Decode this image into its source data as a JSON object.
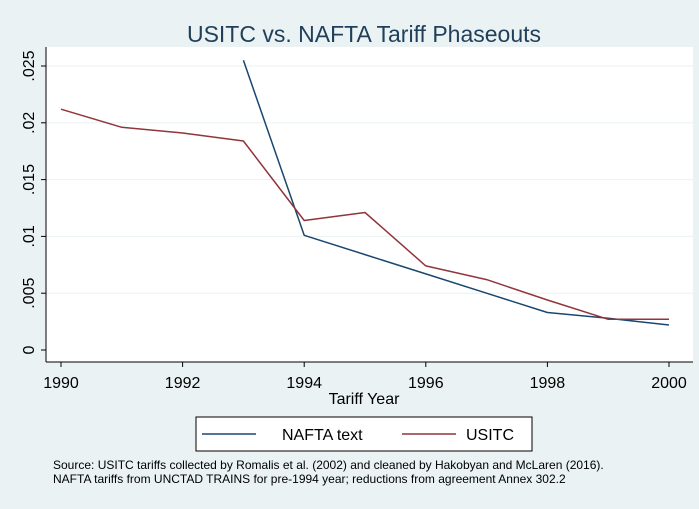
{
  "chart_data": {
    "type": "line",
    "title": "USITC vs. NAFTA Tariff Phaseouts",
    "xlabel": "Tariff Year",
    "ylabel": "",
    "xlim": [
      1990,
      2000
    ],
    "ylim": [
      0,
      0.025
    ],
    "x_ticks": [
      1990,
      1992,
      1994,
      1996,
      1998,
      2000
    ],
    "x_tick_labels": [
      "1990",
      "1992",
      "1994",
      "1996",
      "1998",
      "2000"
    ],
    "y_ticks": [
      0,
      0.005,
      0.01,
      0.015,
      0.02,
      0.025
    ],
    "y_tick_labels": [
      "0",
      ".005",
      ".01",
      ".015",
      ".02",
      ".025"
    ],
    "grid": true,
    "legend_position": "bottom",
    "series": [
      {
        "name": "NAFTA text",
        "color": "#1a476f",
        "x": [
          1993,
          1994,
          1995,
          1996,
          1997,
          1998,
          1999,
          2000
        ],
        "y": [
          0.0255,
          0.0101,
          0.0084,
          0.0067,
          0.005,
          0.0033,
          0.0028,
          0.0022
        ]
      },
      {
        "name": "USITC",
        "color": "#90353b",
        "x": [
          1990,
          1991,
          1992,
          1993,
          1994,
          1995,
          1996,
          1997,
          1998,
          1999,
          2000
        ],
        "y": [
          0.0212,
          0.0196,
          0.0191,
          0.0184,
          0.0114,
          0.0121,
          0.0074,
          0.0062,
          0.0044,
          0.0027,
          0.0027
        ]
      }
    ]
  },
  "footnote": {
    "line1": "Source: USITC tariffs collected by Romalis et al. (2002) and cleaned by Hakobyan and McLaren (2016).",
    "line2": "NAFTA tariffs from UNCTAD TRAINS for pre-1994 year; reductions from agreement Annex 302.2"
  }
}
